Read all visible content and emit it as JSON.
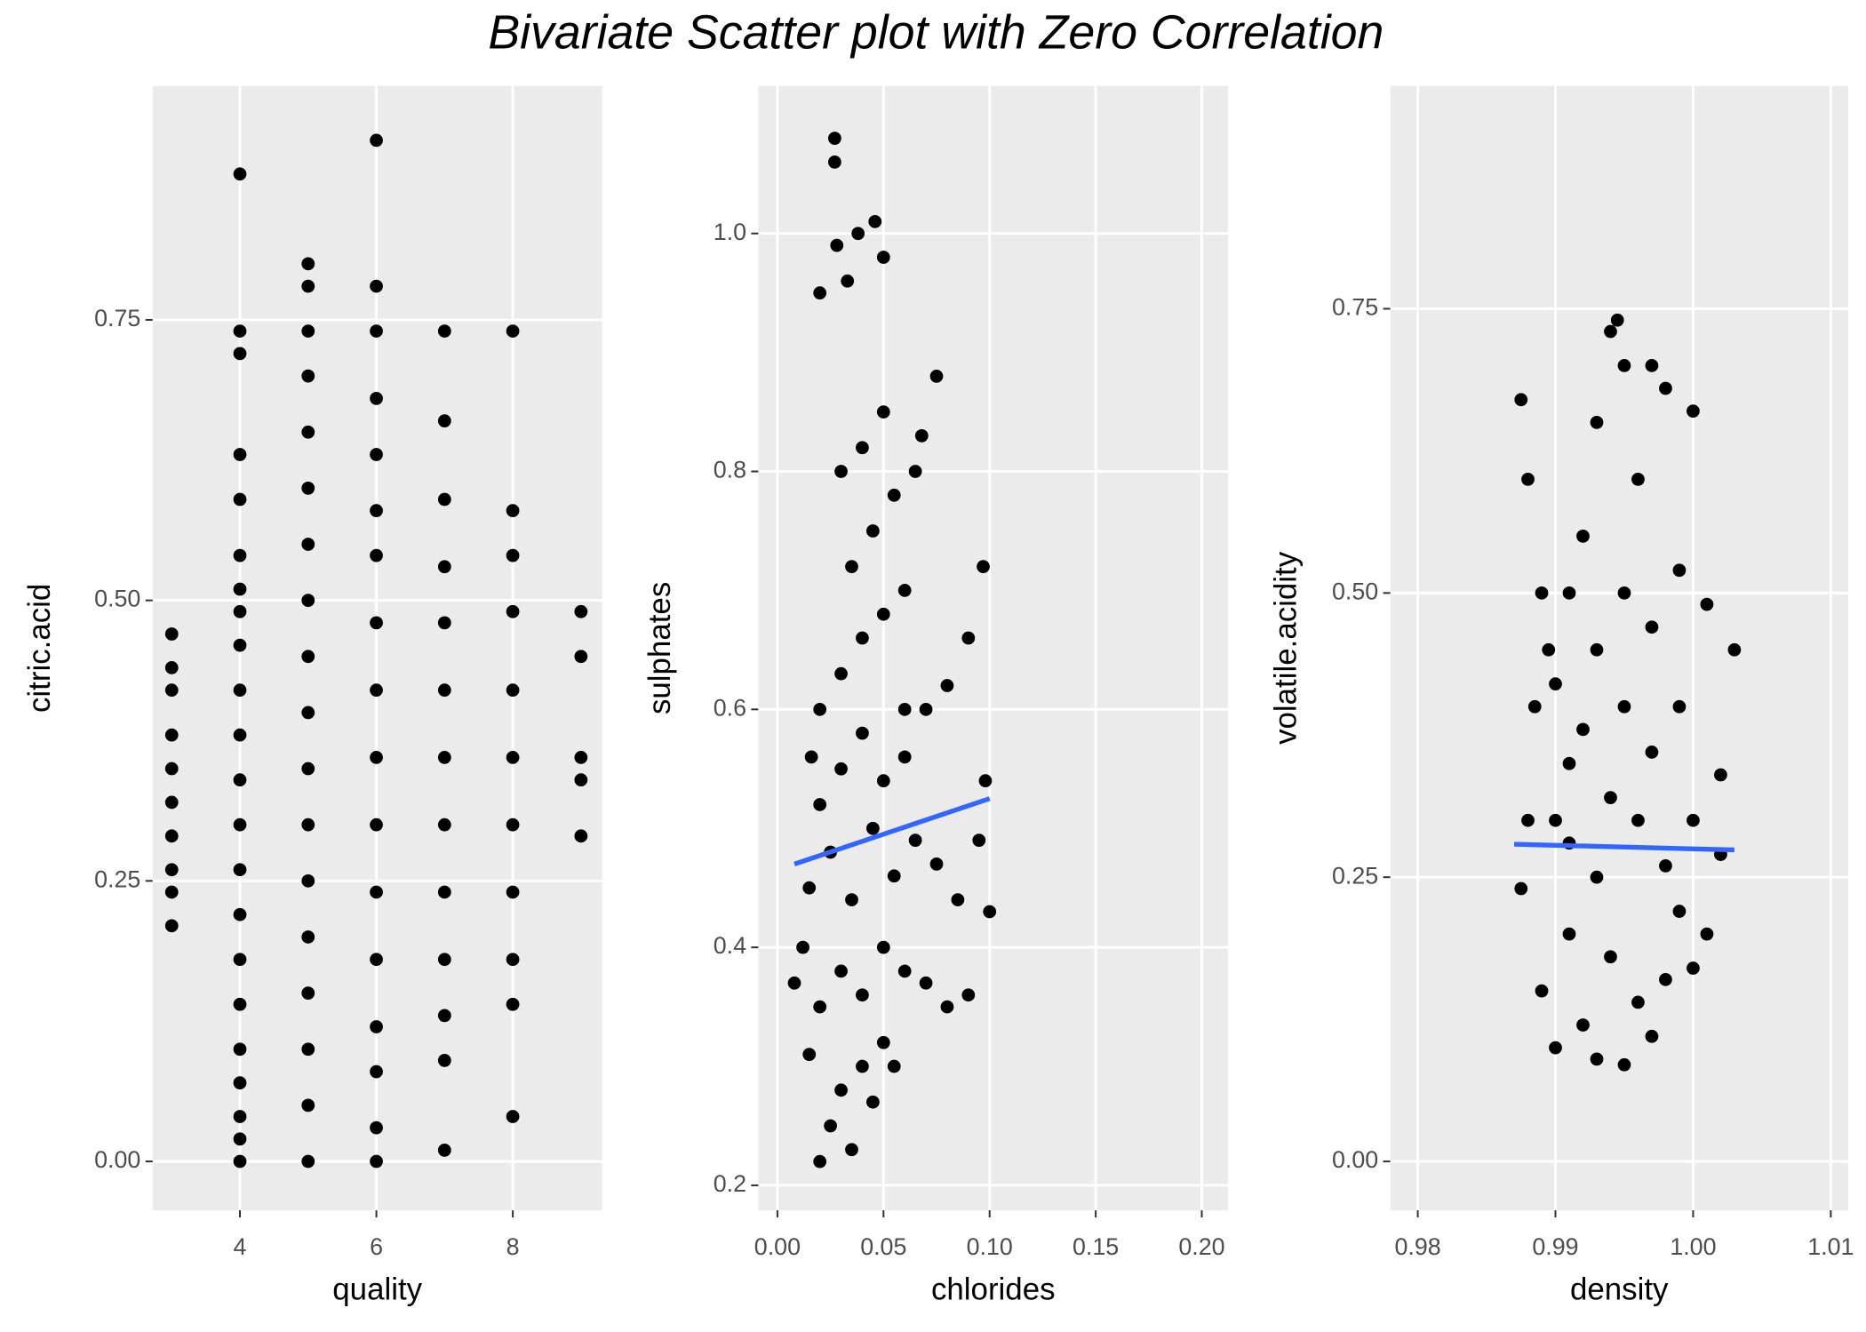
{
  "title": "Bivariate Scatter plot with Zero Correlation",
  "chart_data": [
    {
      "type": "scatter",
      "xlabel": "quality",
      "ylabel": "citric.acid",
      "color": "#000000",
      "xlim": [
        2.72,
        9.31
      ],
      "ylim": [
        -0.0436,
        0.9585
      ],
      "xticks": [
        4,
        6,
        8
      ],
      "yticks": [
        {
          "value": 0,
          "label": "0.00"
        },
        0.25,
        {
          "value": 0.5,
          "label": "0.50"
        },
        0.75
      ],
      "x": [
        3,
        3,
        3,
        3,
        3,
        3,
        3,
        3,
        3,
        3,
        4,
        4,
        4,
        4,
        4,
        4,
        4,
        4,
        4,
        4,
        4,
        4,
        4,
        4,
        4,
        4,
        4,
        4,
        4,
        4,
        4,
        4,
        5,
        5,
        5,
        5,
        5,
        5,
        5,
        5,
        5,
        5,
        5,
        5,
        5,
        5,
        5,
        5,
        5,
        5,
        6,
        6,
        6,
        6,
        6,
        6,
        6,
        6,
        6,
        6,
        6,
        6,
        6,
        6,
        6,
        6,
        6,
        7,
        7,
        7,
        7,
        7,
        7,
        7,
        7,
        7,
        7,
        7,
        7,
        7,
        8,
        8,
        8,
        8,
        8,
        8,
        8,
        8,
        8,
        8,
        8,
        9,
        9,
        9,
        9,
        9
      ],
      "y": [
        0.21,
        0.24,
        0.26,
        0.29,
        0.32,
        0.35,
        0.38,
        0.42,
        0.44,
        0.47,
        0,
        0.02,
        0.04,
        0.07,
        0.1,
        0.14,
        0.18,
        0.22,
        0.26,
        0.3,
        0.34,
        0.38,
        0.42,
        0.46,
        0.49,
        0.51,
        0.54,
        0.59,
        0.63,
        0.72,
        0.74,
        0.88,
        0,
        0.05,
        0.1,
        0.15,
        0.2,
        0.25,
        0.3,
        0.35,
        0.4,
        0.45,
        0.5,
        0.55,
        0.6,
        0.65,
        0.7,
        0.74,
        0.78,
        0.8,
        0,
        0.03,
        0.08,
        0.12,
        0.18,
        0.24,
        0.3,
        0.36,
        0.42,
        0.48,
        0.54,
        0.58,
        0.63,
        0.68,
        0.74,
        0.78,
        0.91,
        0.01,
        0.09,
        0.13,
        0.18,
        0.24,
        0.3,
        0.36,
        0.42,
        0.48,
        0.53,
        0.59,
        0.66,
        0.74,
        0.04,
        0.14,
        0.18,
        0.24,
        0.3,
        0.36,
        0.42,
        0.49,
        0.54,
        0.58,
        0.74,
        0.29,
        0.34,
        0.36,
        0.45,
        0.49
      ]
    },
    {
      "type": "scatter",
      "xlabel": "chlorides",
      "ylabel": "sulphates",
      "color": "#000000",
      "xlim": [
        -0.009,
        0.2124
      ],
      "ylim": [
        0.179,
        1.124
      ],
      "xticks": [
        {
          "value": 0,
          "label": "0.00"
        },
        0.05,
        {
          "value": 0.1,
          "label": "0.10"
        },
        0.15,
        {
          "value": 0.2,
          "label": "0.20"
        }
      ],
      "yticks": [
        0.2,
        0.4,
        0.6,
        0.8,
        {
          "value": 1,
          "label": "1.0"
        }
      ],
      "x": [
        0.02,
        0.025,
        0.03,
        0.035,
        0.04,
        0.045,
        0.05,
        0.055,
        0.015,
        0.02,
        0.008,
        0.012,
        0.03,
        0.04,
        0.05,
        0.06,
        0.07,
        0.08,
        0.09,
        0.1,
        0.015,
        0.025,
        0.035,
        0.045,
        0.055,
        0.065,
        0.075,
        0.085,
        0.095,
        0.098,
        0.02,
        0.03,
        0.04,
        0.05,
        0.06,
        0.07,
        0.08,
        0.09,
        0.097,
        0.02,
        0.03,
        0.04,
        0.05,
        0.06,
        0.035,
        0.045,
        0.055,
        0.075,
        0.03,
        0.04,
        0.05,
        0.02,
        0.028,
        0.033,
        0.038,
        0.046,
        0.05,
        0.027,
        0.027,
        0.065,
        0.068,
        0.016,
        0.06
      ],
      "y": [
        0.22,
        0.25,
        0.28,
        0.23,
        0.3,
        0.27,
        0.32,
        0.3,
        0.31,
        0.35,
        0.37,
        0.4,
        0.38,
        0.36,
        0.4,
        0.38,
        0.37,
        0.35,
        0.36,
        0.43,
        0.45,
        0.48,
        0.44,
        0.5,
        0.46,
        0.49,
        0.47,
        0.44,
        0.49,
        0.54,
        0.52,
        0.55,
        0.58,
        0.54,
        0.56,
        0.6,
        0.62,
        0.66,
        0.72,
        0.6,
        0.63,
        0.66,
        0.68,
        0.7,
        0.72,
        0.75,
        0.78,
        0.88,
        0.8,
        0.82,
        0.85,
        0.95,
        0.99,
        0.96,
        1.0,
        1.01,
        0.98,
        1.06,
        1.08,
        0.8,
        0.83,
        0.56,
        0.6
      ],
      "trend": {
        "color": "#3366ff",
        "x": [
          0.008,
          0.1
        ],
        "y": [
          0.47,
          0.525
        ]
      }
    },
    {
      "type": "scatter",
      "xlabel": "density",
      "ylabel": "volatile.acidity",
      "color": "#000000",
      "xlim": [
        0.978,
        1.01126
      ],
      "ylim": [
        -0.043,
        0.946
      ],
      "xticks": [
        0.98,
        0.99,
        {
          "value": 1,
          "label": "1.00"
        },
        1.01
      ],
      "yticks": [
        {
          "value": 0,
          "label": "0.00"
        },
        0.25,
        {
          "value": 0.5,
          "label": "0.50"
        },
        0.75
      ],
      "x": [
        0.9875,
        0.988,
        0.989,
        0.99,
        0.991,
        0.992,
        0.993,
        0.994,
        0.995,
        0.996,
        0.997,
        0.998,
        0.999,
        1.0,
        1.001,
        1.002,
        1.003,
        0.9875,
        0.988,
        0.989,
        0.99,
        0.991,
        0.992,
        0.993,
        0.994,
        0.9945,
        0.995,
        0.996,
        0.997,
        0.998,
        0.999,
        1.0,
        1.001,
        1.002,
        0.9885,
        0.99,
        0.991,
        0.992,
        0.993,
        0.994,
        0.995,
        0.996,
        0.997,
        0.998,
        0.999,
        1.0,
        0.9895,
        0.991,
        0.993,
        0.995,
        0.997
      ],
      "y": [
        0.24,
        0.3,
        0.15,
        0.1,
        0.2,
        0.12,
        0.09,
        0.18,
        0.085,
        0.14,
        0.11,
        0.16,
        0.22,
        0.17,
        0.2,
        0.27,
        0.45,
        0.67,
        0.6,
        0.5,
        0.42,
        0.35,
        0.55,
        0.65,
        0.73,
        0.74,
        0.7,
        0.6,
        0.7,
        0.68,
        0.52,
        0.66,
        0.49,
        0.34,
        0.4,
        0.3,
        0.28,
        0.38,
        0.25,
        0.32,
        0.4,
        0.3,
        0.36,
        0.26,
        0.4,
        0.3,
        0.45,
        0.5,
        0.45,
        0.5,
        0.47
      ],
      "trend": {
        "color": "#3366ff",
        "x": [
          0.987,
          1.003
        ],
        "y": [
          0.279,
          0.274
        ]
      }
    }
  ]
}
